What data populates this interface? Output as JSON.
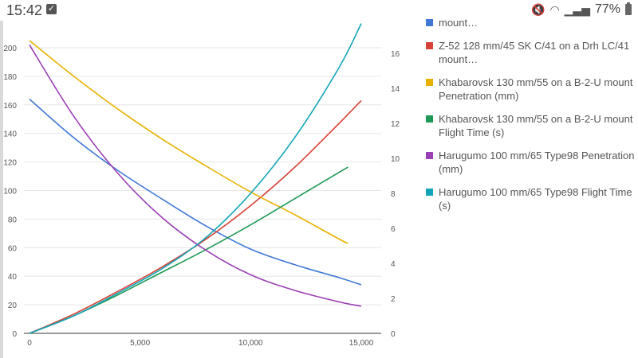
{
  "status_bar": {
    "time": "15:42",
    "battery_percent": "77%",
    "icons": [
      "mute-icon",
      "wifi-icon",
      "signal-icon",
      "battery-icon"
    ]
  },
  "chart_data": {
    "type": "line",
    "xlim": [
      0,
      16000
    ],
    "x_ticks": [
      0,
      5000,
      10000,
      15000
    ],
    "x_tick_labels": [
      "0",
      "5,000",
      "10,000",
      "15,000"
    ],
    "y_left": {
      "range": [
        0,
        220
      ],
      "ticks": [
        "0",
        "20",
        "40",
        "60",
        "80",
        "100",
        "120",
        "140",
        "160",
        "180",
        "200"
      ]
    },
    "y_right": {
      "range": [
        0,
        18
      ],
      "ticks": [
        "0",
        "2",
        "4",
        "6",
        "8",
        "10",
        "12",
        "14",
        "16"
      ]
    },
    "grid": true,
    "legend_position": "right",
    "series": [
      {
        "name": "mount…",
        "color": "#3f78d6",
        "axis": "left",
        "x": [
          0,
          2000,
          4000,
          6000,
          8000,
          10000,
          12000,
          14000,
          15000
        ],
        "values": [
          164,
          137,
          114,
          94,
          75,
          59,
          48,
          39,
          34
        ]
      },
      {
        "name": "Z-52 128 mm/45 SK C/41 on a Drh LC/41 mount…",
        "color": "#d64237",
        "axis": "right",
        "x": [
          0,
          2000,
          4000,
          6000,
          8000,
          10000,
          12000,
          14000,
          15000
        ],
        "values": [
          0,
          1.1,
          2.4,
          3.8,
          5.4,
          7.3,
          9.5,
          12.0,
          13.3
        ]
      },
      {
        "name": "Khabarovsk 130 mm/55 on a B-2-U mount Penetration (mm)",
        "color": "#e8b100",
        "axis": "left",
        "x": [
          0,
          2000,
          4000,
          6000,
          8000,
          10000,
          12000,
          14000,
          14400
        ],
        "values": [
          205,
          180,
          157,
          136,
          117,
          99,
          83,
          66,
          63
        ]
      },
      {
        "name": "Khabarovsk 130 mm/55 on a B-2-U mount Flight Time (s)",
        "color": "#1e9956",
        "axis": "right",
        "x": [
          0,
          2000,
          4000,
          6000,
          8000,
          10000,
          12000,
          14000,
          14400
        ],
        "values": [
          0,
          1.0,
          2.2,
          3.5,
          4.8,
          6.2,
          7.7,
          9.2,
          9.5
        ]
      },
      {
        "name": "Harugumo 100 mm/65 Type98 Penetration (mm)",
        "color": "#9b3fb5",
        "axis": "left",
        "x": [
          0,
          2000,
          4000,
          6000,
          8000,
          10000,
          12000,
          14000,
          15000
        ],
        "values": [
          202,
          152,
          112,
          81,
          58,
          41,
          30,
          22,
          19
        ]
      },
      {
        "name": "Harugumo 100 mm/65 Type98 Flight Time (s)",
        "color": "#12a4b8",
        "axis": "right",
        "x": [
          0,
          2000,
          4000,
          6000,
          8000,
          10000,
          12000,
          14000,
          15000
        ],
        "values": [
          0,
          1.0,
          2.3,
          3.7,
          5.5,
          8.0,
          11.2,
          15.2,
          17.7
        ]
      }
    ]
  }
}
